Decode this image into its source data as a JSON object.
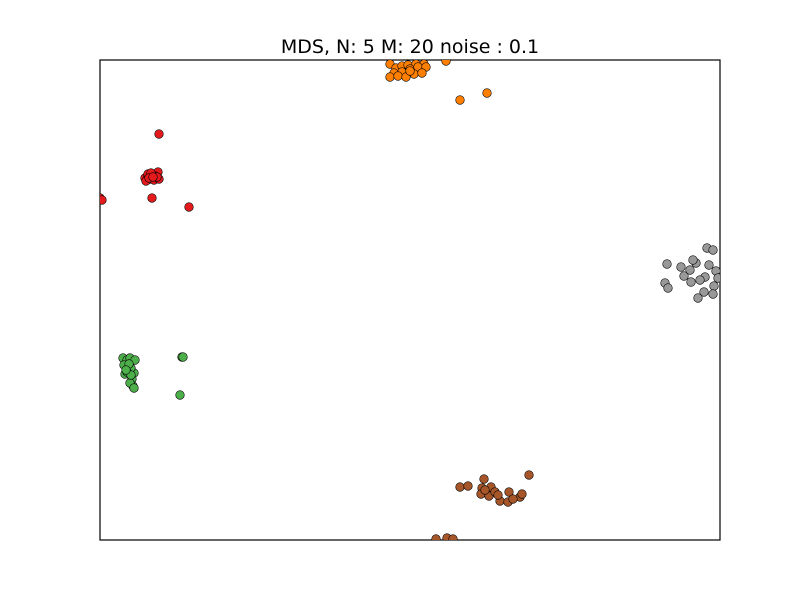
{
  "chart_data": {
    "type": "scatter",
    "title": "MDS, N: 5 M: 20 noise : 0.1",
    "xlabel": "",
    "ylabel": "",
    "xlim": [
      0,
      620
    ],
    "ylim": [
      0,
      480
    ],
    "grid": false,
    "axis_ticks": false,
    "legend": "none",
    "series": [
      {
        "color": "#ff7f00",
        "points": [
          [
            290,
            476
          ],
          [
            296,
            472
          ],
          [
            302,
            474
          ],
          [
            308,
            475
          ],
          [
            316,
            476
          ],
          [
            324,
            476
          ],
          [
            294,
            467
          ],
          [
            302,
            468
          ],
          [
            310,
            471
          ],
          [
            318,
            473
          ],
          [
            326,
            473
          ],
          [
            346,
            479
          ],
          [
            290,
            463
          ],
          [
            298,
            464
          ],
          [
            306,
            463
          ],
          [
            314,
            466
          ],
          [
            322,
            467
          ],
          [
            360,
            440
          ],
          [
            387,
            447
          ],
          [
            310,
            469
          ]
        ]
      },
      {
        "color": "#e41a1c",
        "points": [
          [
            59,
            406
          ],
          [
            45,
            362
          ],
          [
            48,
            364
          ],
          [
            52,
            365
          ],
          [
            56,
            366
          ],
          [
            58,
            368
          ],
          [
            50,
            361
          ],
          [
            54,
            360
          ],
          [
            46,
            359
          ],
          [
            59,
            361
          ],
          [
            55,
            364
          ],
          [
            0,
            342
          ],
          [
            2,
            340
          ],
          [
            52,
            342
          ],
          [
            89,
            333
          ],
          [
            48,
            366
          ],
          [
            57,
            363
          ],
          [
            51,
            367
          ],
          [
            49,
            362
          ],
          [
            53,
            363
          ]
        ]
      },
      {
        "color": "#4daf4a",
        "points": [
          [
            23,
            182
          ],
          [
            27,
            180
          ],
          [
            30,
            182
          ],
          [
            35,
            180
          ],
          [
            24,
            175
          ],
          [
            28,
            171
          ],
          [
            34,
            167
          ],
          [
            25,
            166
          ],
          [
            31,
            172
          ],
          [
            29,
            176
          ],
          [
            32,
            161
          ],
          [
            33,
            154
          ],
          [
            30,
            157
          ],
          [
            34,
            152
          ],
          [
            82,
            183
          ],
          [
            80,
            145
          ],
          [
            27,
            168
          ],
          [
            31,
            165
          ],
          [
            26,
            170
          ],
          [
            83,
            183
          ]
        ]
      },
      {
        "color": "#999999",
        "points": [
          [
            607,
            292
          ],
          [
            613,
            290
          ],
          [
            567,
            276
          ],
          [
            581,
            273
          ],
          [
            596,
            277
          ],
          [
            593,
            280
          ],
          [
            609,
            275
          ],
          [
            616,
            269
          ],
          [
            584,
            264
          ],
          [
            605,
            263
          ],
          [
            618,
            262
          ],
          [
            565,
            257
          ],
          [
            591,
            258
          ],
          [
            614,
            254
          ],
          [
            568,
            252
          ],
          [
            604,
            248
          ],
          [
            598,
            242
          ],
          [
            613,
            246
          ],
          [
            590,
            270
          ],
          [
            600,
            260
          ]
        ]
      },
      {
        "color": "#a65628",
        "points": [
          [
            429,
            65
          ],
          [
            384,
            61
          ],
          [
            360,
            53
          ],
          [
            368,
            54
          ],
          [
            382,
            52
          ],
          [
            391,
            53
          ],
          [
            381,
            46
          ],
          [
            389,
            44
          ],
          [
            395,
            48
          ],
          [
            409,
            48
          ],
          [
            420,
            43
          ],
          [
            422,
            46
          ],
          [
            400,
            39
          ],
          [
            408,
            38
          ],
          [
            413,
            41
          ],
          [
            336,
            1
          ],
          [
            347,
            2
          ],
          [
            353,
            1
          ],
          [
            385,
            50
          ],
          [
            398,
            45
          ]
        ]
      }
    ]
  }
}
